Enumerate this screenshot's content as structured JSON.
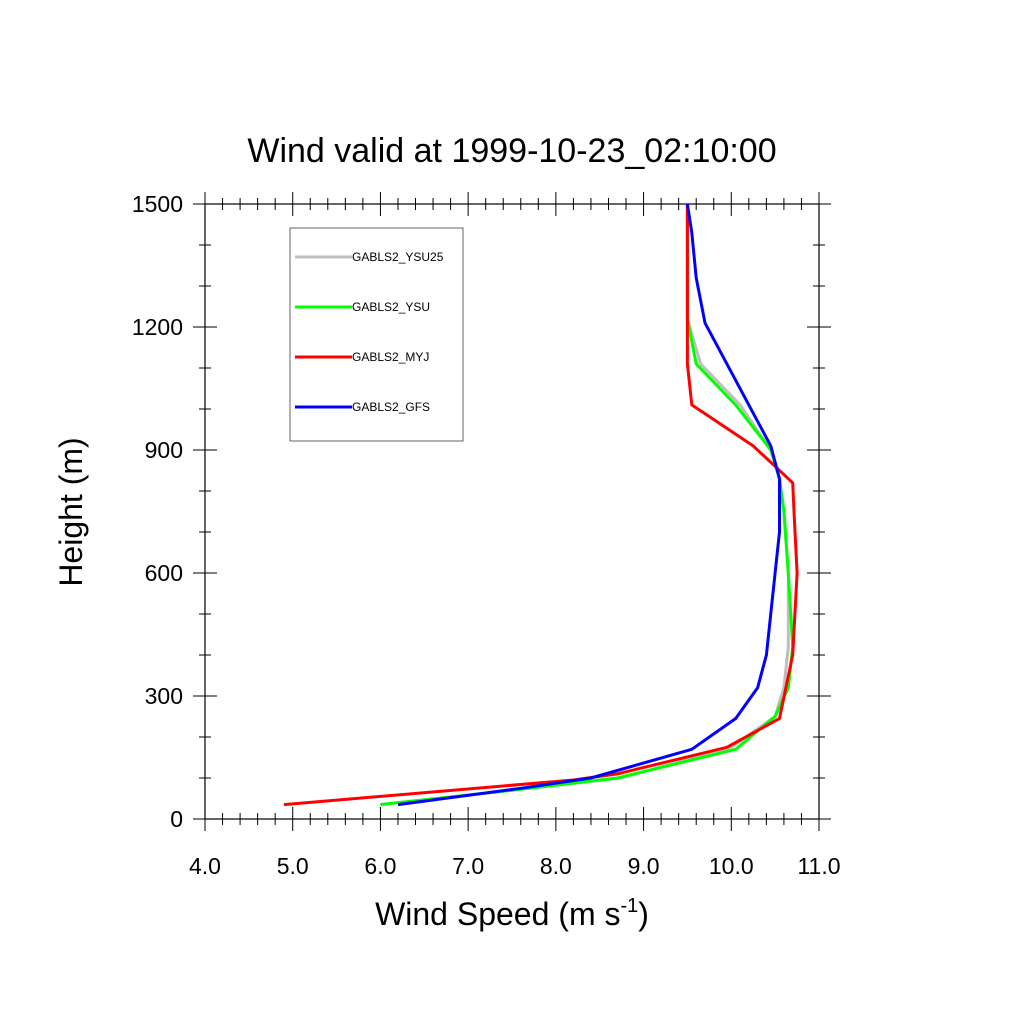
{
  "chart_data": {
    "type": "line",
    "title": "Wind valid at 1999-10-23_02:10:00",
    "xlabel": "Wind Speed (m s",
    "xlabel_sup": "-1",
    "xlabel_end": ")",
    "ylabel": "Height (m)",
    "xlim": [
      4.0,
      11.0
    ],
    "ylim": [
      0,
      1500
    ],
    "x_ticks": [
      "4.0",
      "5.0",
      "6.0",
      "7.0",
      "8.0",
      "9.0",
      "10.0",
      "11.0"
    ],
    "x_tick_values": [
      4,
      5,
      6,
      7,
      8,
      9,
      10,
      11
    ],
    "y_ticks": [
      "0",
      "300",
      "600",
      "900",
      "1200",
      "1500"
    ],
    "y_tick_values": [
      0,
      300,
      600,
      900,
      1200,
      1500
    ],
    "grid": false,
    "legend_position": "top-left",
    "series": [
      {
        "name": "GABLS2_YSU25",
        "color": "#bebebe",
        "x": [
          6.0,
          7.5,
          8.75,
          10.0,
          10.5,
          10.6,
          10.65,
          10.65,
          10.6,
          10.55,
          10.45,
          10.1,
          9.65,
          9.5,
          9.5,
          9.5
        ],
        "y": [
          35,
          70,
          100,
          175,
          250,
          320,
          420,
          600,
          750,
          830,
          900,
          1010,
          1110,
          1220,
          1300,
          1500
        ]
      },
      {
        "name": "GABLS2_YSU",
        "color": "#00ff00",
        "x": [
          6.0,
          7.5,
          8.7,
          10.05,
          10.5,
          10.65,
          10.7,
          10.65,
          10.6,
          10.55,
          10.45,
          10.05,
          9.6,
          9.5,
          9.5
        ],
        "y": [
          35,
          70,
          100,
          170,
          250,
          320,
          420,
          600,
          750,
          830,
          900,
          1010,
          1110,
          1220,
          1500
        ]
      },
      {
        "name": "GABLS2_MYJ",
        "color": "#ff0000",
        "x": [
          4.9,
          8.2,
          8.7,
          9.95,
          10.55,
          10.7,
          10.75,
          10.72,
          10.7,
          10.45,
          10.25,
          9.55,
          9.5,
          9.5,
          9.5
        ],
        "y": [
          35,
          95,
          110,
          175,
          245,
          400,
          600,
          730,
          820,
          870,
          910,
          1010,
          1110,
          1220,
          1500
        ]
      },
      {
        "name": "GABLS2_GFS",
        "color": "#0000ff",
        "x": [
          6.2,
          7.6,
          8.4,
          9.55,
          10.05,
          10.3,
          10.4,
          10.5,
          10.55,
          10.55,
          10.55,
          10.45,
          10.2,
          9.95,
          9.7,
          9.6,
          9.55,
          9.5
        ],
        "y": [
          35,
          75,
          100,
          170,
          245,
          320,
          400,
          600,
          700,
          760,
          830,
          910,
          1010,
          1110,
          1210,
          1320,
          1430,
          1500
        ]
      }
    ]
  }
}
